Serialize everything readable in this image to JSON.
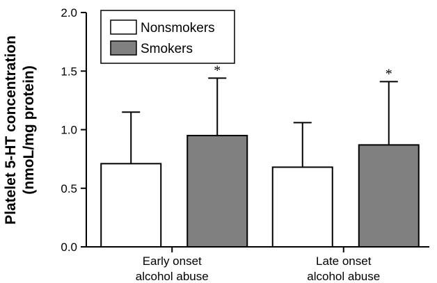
{
  "chart_data": {
    "type": "bar",
    "title": "",
    "xlabel": "",
    "ylabel_lines": [
      "Platelet 5-HT concentration",
      "(nmoL/mg protein)"
    ],
    "categories": [
      [
        "Early onset",
        "alcohol abuse"
      ],
      [
        "Late onset",
        "alcohol abuse"
      ]
    ],
    "series": [
      {
        "name": "Nonsmokers",
        "color": "#ffffff",
        "values": [
          0.71,
          0.68
        ],
        "errors": [
          0.44,
          0.38
        ],
        "significance": [
          "",
          ""
        ]
      },
      {
        "name": "Smokers",
        "color": "#808080",
        "values": [
          0.95,
          0.87
        ],
        "errors": [
          0.49,
          0.54
        ],
        "significance": [
          "*",
          "*"
        ]
      }
    ],
    "ylim": [
      0,
      2.0
    ],
    "yticks": [
      "0.0",
      "0.5",
      "1.0",
      "1.5",
      "2.0"
    ],
    "error_bars": "upper",
    "legend_position": "top-left",
    "grid": false
  }
}
